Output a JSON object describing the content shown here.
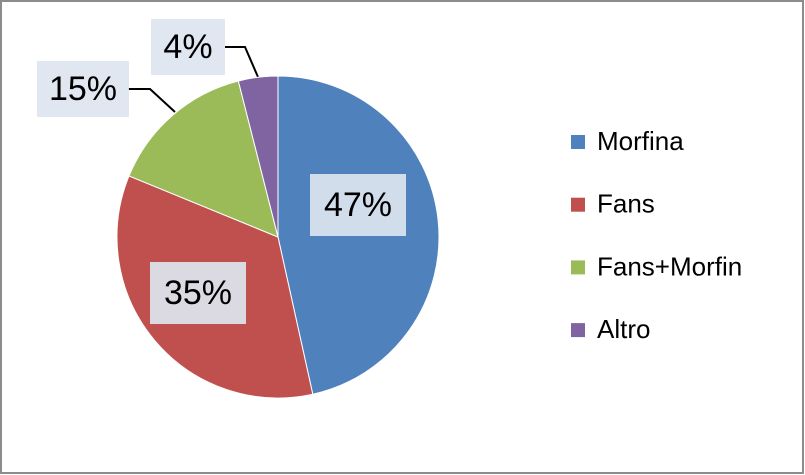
{
  "chart_data": {
    "type": "pie",
    "categories": [
      "Morfina",
      "Fans",
      "Fans+Morfin",
      "Altro"
    ],
    "values": [
      47,
      35,
      15,
      4
    ],
    "value_labels": [
      "47%",
      "35%",
      "15%",
      "4%"
    ],
    "colors": [
      "#4f81bd",
      "#c0504d",
      "#9bbb59",
      "#8064a2"
    ],
    "legend": "right"
  }
}
